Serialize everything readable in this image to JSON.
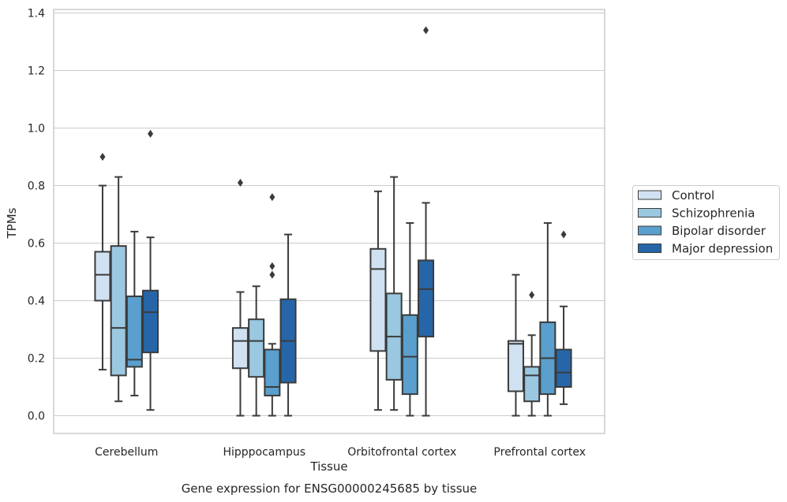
{
  "caption": "Gene expression for ENSG00000245685 by tissue",
  "chart_data": {
    "type": "box",
    "title": "",
    "xlabel": "Tissue",
    "ylabel": "TPMs",
    "ylim": [
      -0.06,
      1.41
    ],
    "yticks": [
      "0.0",
      "0.2",
      "0.4",
      "0.6",
      "0.8",
      "1.0",
      "1.2",
      "1.4"
    ],
    "grid": true,
    "legend_position": "right",
    "categories": [
      "Cerebellum",
      "Hipppocampus",
      "Orbitofrontal cortex",
      "Prefrontal cortex"
    ],
    "series": [
      {
        "name": "Control",
        "color": "#d0e1f2",
        "boxes": [
          {
            "whislo": 0.16,
            "q1": 0.4,
            "med": 0.49,
            "q3": 0.57,
            "whishi": 0.8,
            "fliers": [
              0.9
            ]
          },
          {
            "whislo": 0.0,
            "q1": 0.165,
            "med": 0.26,
            "q3": 0.305,
            "whishi": 0.43,
            "fliers": [
              0.81
            ]
          },
          {
            "whislo": 0.02,
            "q1": 0.225,
            "med": 0.51,
            "q3": 0.58,
            "whishi": 0.78,
            "fliers": []
          },
          {
            "whislo": 0.0,
            "q1": 0.085,
            "med": 0.25,
            "q3": 0.26,
            "whishi": 0.49,
            "fliers": []
          }
        ]
      },
      {
        "name": "Schizophrenia",
        "color": "#9ac8e0",
        "boxes": [
          {
            "whislo": 0.05,
            "q1": 0.14,
            "med": 0.305,
            "q3": 0.59,
            "whishi": 0.83,
            "fliers": []
          },
          {
            "whislo": 0.0,
            "q1": 0.135,
            "med": 0.26,
            "q3": 0.335,
            "whishi": 0.45,
            "fliers": []
          },
          {
            "whislo": 0.02,
            "q1": 0.125,
            "med": 0.275,
            "q3": 0.425,
            "whishi": 0.83,
            "fliers": []
          },
          {
            "whislo": 0.0,
            "q1": 0.05,
            "med": 0.14,
            "q3": 0.17,
            "whishi": 0.28,
            "fliers": [
              0.42
            ]
          }
        ]
      },
      {
        "name": "Bipolar disorder",
        "color": "#5a9fcd",
        "boxes": [
          {
            "whislo": 0.07,
            "q1": 0.17,
            "med": 0.195,
            "q3": 0.415,
            "whishi": 0.64,
            "fliers": []
          },
          {
            "whislo": 0.0,
            "q1": 0.07,
            "med": 0.1,
            "q3": 0.23,
            "whishi": 0.25,
            "fliers": [
              0.49,
              0.52,
              0.76
            ]
          },
          {
            "whislo": 0.0,
            "q1": 0.075,
            "med": 0.205,
            "q3": 0.35,
            "whishi": 0.67,
            "fliers": []
          },
          {
            "whislo": 0.0,
            "q1": 0.075,
            "med": 0.2,
            "q3": 0.325,
            "whishi": 0.67,
            "fliers": []
          }
        ]
      },
      {
        "name": "Major depression",
        "color": "#2666a8",
        "boxes": [
          {
            "whislo": 0.02,
            "q1": 0.22,
            "med": 0.36,
            "q3": 0.435,
            "whishi": 0.62,
            "fliers": [
              0.98
            ]
          },
          {
            "whislo": 0.0,
            "q1": 0.115,
            "med": 0.26,
            "q3": 0.405,
            "whishi": 0.63,
            "fliers": []
          },
          {
            "whislo": 0.0,
            "q1": 0.275,
            "med": 0.44,
            "q3": 0.54,
            "whishi": 0.74,
            "fliers": [
              1.34
            ]
          },
          {
            "whislo": 0.04,
            "q1": 0.1,
            "med": 0.15,
            "q3": 0.23,
            "whishi": 0.38,
            "fliers": [
              0.63
            ]
          }
        ]
      }
    ]
  }
}
